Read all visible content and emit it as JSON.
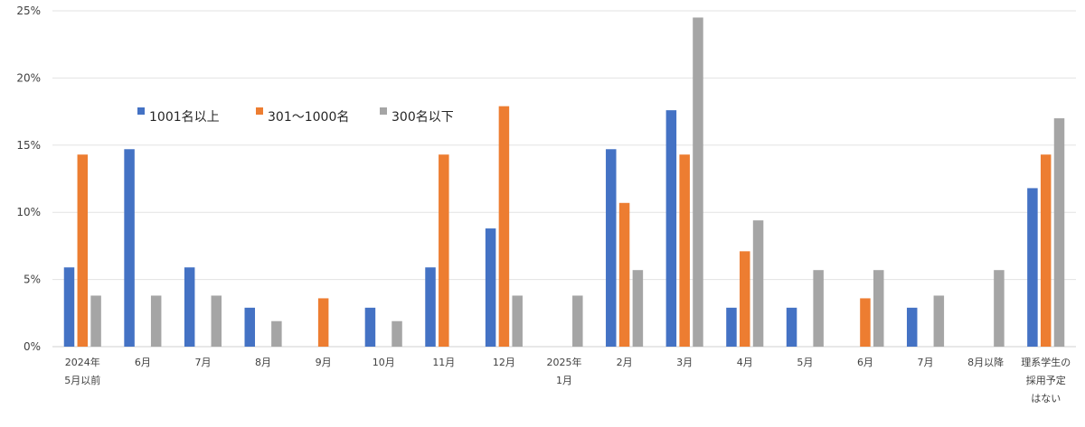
{
  "chart_data": {
    "type": "bar",
    "title": "",
    "xlabel": "",
    "ylabel": "",
    "ylim": [
      0,
      25
    ],
    "yticks": [
      "0%",
      "5%",
      "10%",
      "15%",
      "20%",
      "25%"
    ],
    "grid": true,
    "legend_position": "top-left-inside",
    "categories": [
      [
        "2024年",
        "5月以前"
      ],
      [
        "6月"
      ],
      [
        "7月"
      ],
      [
        "8月"
      ],
      [
        "9月"
      ],
      [
        "10月"
      ],
      [
        "11月"
      ],
      [
        "12月"
      ],
      [
        "2025年",
        "1月"
      ],
      [
        "2月"
      ],
      [
        "3月"
      ],
      [
        "4月"
      ],
      [
        "5月"
      ],
      [
        "6月"
      ],
      [
        "7月"
      ],
      [
        "8月以降"
      ],
      [
        "理系学生の",
        "採用予定",
        "はない"
      ]
    ],
    "series": [
      {
        "name": "1001名以上",
        "color": "#4472C4",
        "values": [
          5.9,
          14.7,
          5.9,
          2.9,
          0,
          2.9,
          5.9,
          8.8,
          0,
          14.7,
          17.6,
          2.9,
          2.9,
          0,
          2.9,
          0,
          11.8
        ]
      },
      {
        "name": "301～1000名",
        "color": "#ED7D31",
        "values": [
          14.3,
          0,
          0,
          0,
          3.6,
          0,
          14.3,
          17.9,
          0,
          10.7,
          14.3,
          7.1,
          0,
          3.6,
          0,
          0,
          14.3
        ]
      },
      {
        "name": "300名以下",
        "color": "#A5A5A5",
        "values": [
          3.8,
          3.8,
          3.8,
          1.9,
          0,
          1.9,
          0,
          3.8,
          3.8,
          5.7,
          24.5,
          9.4,
          5.7,
          5.7,
          3.8,
          5.7,
          17.0
        ]
      }
    ]
  }
}
